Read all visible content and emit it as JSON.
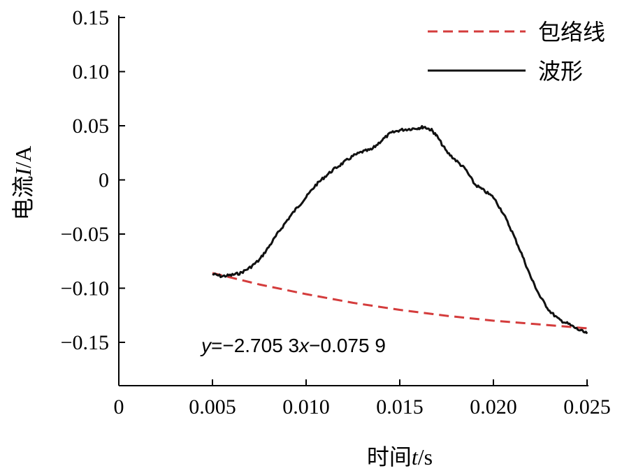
{
  "chart_data": {
    "type": "line",
    "xlabel": {
      "prefix": "时间",
      "var": "t",
      "unit": "/s"
    },
    "ylabel": {
      "prefix": "电流",
      "var": "I",
      "unit": "/A"
    },
    "xlim": [
      0,
      0.025
    ],
    "ylim": [
      -0.19,
      0.15
    ],
    "xticks": [
      0,
      0.005,
      0.01,
      0.015,
      0.02,
      0.025
    ],
    "xtick_labels": [
      "0",
      "0.005",
      "0.010",
      "0.015",
      "0.020",
      "0.025"
    ],
    "yticks": [
      0.15,
      0.1,
      0.05,
      0,
      -0.05,
      -0.1,
      -0.15
    ],
    "ytick_labels": [
      "0.15",
      "0.10",
      "0.05",
      "0",
      "−0.05",
      "−0.10",
      "−0.15"
    ],
    "grid": false,
    "legend_position": "top-right",
    "annotation": {
      "y": "y",
      "eq": "=−2.705 3",
      "x": "x",
      "rest": "−0.075 9"
    },
    "series": [
      {
        "name": "包络线",
        "style": "dashed",
        "color": "#d43c3c",
        "x": [
          0.005,
          0.0075,
          0.01,
          0.0125,
          0.015,
          0.0175,
          0.02,
          0.0225,
          0.025
        ],
        "y": [
          -0.086,
          -0.0965,
          -0.1055,
          -0.1135,
          -0.12,
          -0.1255,
          -0.13,
          -0.1335,
          -0.137
        ]
      },
      {
        "name": "波形",
        "style": "solid",
        "color": "#111111",
        "x": [
          0.005,
          0.0055,
          0.006,
          0.0065,
          0.007,
          0.0075,
          0.008,
          0.0085,
          0.009,
          0.0095,
          0.01,
          0.0105,
          0.011,
          0.0115,
          0.012,
          0.0125,
          0.013,
          0.0135,
          0.014,
          0.0145,
          0.015,
          0.0155,
          0.016,
          0.0163,
          0.0167,
          0.017,
          0.0175,
          0.018,
          0.0185,
          0.019,
          0.0195,
          0.02,
          0.0205,
          0.021,
          0.0215,
          0.022,
          0.0225,
          0.023,
          0.0235,
          0.024,
          0.0245,
          0.025
        ],
        "y": [
          -0.087,
          -0.089,
          -0.088,
          -0.086,
          -0.081,
          -0.074,
          -0.062,
          -0.049,
          -0.037,
          -0.026,
          -0.016,
          -0.005,
          0.003,
          0.01,
          0.016,
          0.022,
          0.026,
          0.028,
          0.036,
          0.043,
          0.046,
          0.047,
          0.048,
          0.049,
          0.046,
          0.04,
          0.026,
          0.018,
          0.01,
          -0.004,
          -0.01,
          -0.016,
          -0.03,
          -0.048,
          -0.068,
          -0.09,
          -0.108,
          -0.121,
          -0.129,
          -0.133,
          -0.138,
          -0.142
        ]
      }
    ]
  }
}
